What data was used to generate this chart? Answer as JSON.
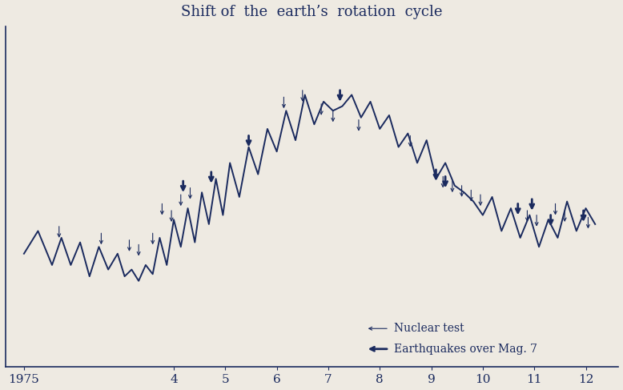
{
  "title": "Shift of  the  earth’s  rotation  cycle",
  "bg_color": "#eeeae2",
  "line_color": "#1a2a5e",
  "nuclear_arrows": [
    [
      1.05,
      3.8,
      false
    ],
    [
      1.95,
      3.5,
      false
    ],
    [
      2.55,
      3.2,
      false
    ],
    [
      2.75,
      3.0,
      false
    ],
    [
      3.05,
      3.5,
      false
    ],
    [
      3.25,
      4.8,
      false
    ],
    [
      3.45,
      4.5,
      false
    ],
    [
      3.65,
      5.2,
      false
    ],
    [
      3.85,
      5.5,
      false
    ],
    [
      5.85,
      9.5,
      false
    ],
    [
      6.25,
      9.8,
      false
    ],
    [
      6.65,
      9.2,
      false
    ],
    [
      6.9,
      8.9,
      false
    ],
    [
      7.45,
      8.5,
      false
    ],
    [
      8.55,
      7.8,
      false
    ],
    [
      9.25,
      6.0,
      false
    ],
    [
      9.45,
      5.8,
      false
    ],
    [
      9.65,
      5.6,
      false
    ],
    [
      9.85,
      5.4,
      false
    ],
    [
      10.05,
      5.2,
      false
    ],
    [
      11.05,
      4.5,
      false
    ],
    [
      11.25,
      4.3,
      false
    ],
    [
      11.65,
      4.8,
      false
    ],
    [
      11.85,
      4.5,
      false
    ],
    [
      12.35,
      4.2,
      false
    ]
  ],
  "earthquake_arrows": [
    [
      3.7,
      5.8,
      true
    ],
    [
      4.3,
      6.2,
      true
    ],
    [
      5.1,
      7.8,
      true
    ],
    [
      7.05,
      9.8,
      true
    ],
    [
      9.1,
      6.3,
      true
    ],
    [
      9.3,
      6.0,
      true
    ],
    [
      10.85,
      4.8,
      true
    ],
    [
      11.15,
      5.0,
      true
    ],
    [
      11.55,
      4.3,
      true
    ],
    [
      12.25,
      4.5,
      true
    ]
  ],
  "line_x": [
    0.3,
    0.6,
    0.9,
    1.1,
    1.3,
    1.5,
    1.7,
    1.9,
    2.1,
    2.3,
    2.45,
    2.6,
    2.75,
    2.9,
    3.05,
    3.2,
    3.35,
    3.5,
    3.65,
    3.8,
    3.95,
    4.1,
    4.25,
    4.4,
    4.55,
    4.7,
    4.9,
    5.1,
    5.3,
    5.5,
    5.7,
    5.9,
    6.1,
    6.3,
    6.5,
    6.7,
    6.9,
    7.1,
    7.3,
    7.5,
    7.7,
    7.9,
    8.1,
    8.3,
    8.5,
    8.7,
    8.9,
    9.1,
    9.3,
    9.5,
    9.7,
    9.9,
    10.1,
    10.3,
    10.5,
    10.7,
    10.9,
    11.1,
    11.3,
    11.5,
    11.7,
    11.9,
    12.1,
    12.3,
    12.5
  ],
  "line_y": [
    2.5,
    3.5,
    2.0,
    3.2,
    2.0,
    3.0,
    1.5,
    2.8,
    1.8,
    2.5,
    1.5,
    1.8,
    1.3,
    2.0,
    1.6,
    3.2,
    2.0,
    4.0,
    2.8,
    4.5,
    3.0,
    5.2,
    3.8,
    5.8,
    4.2,
    6.5,
    5.0,
    7.2,
    6.0,
    8.0,
    7.0,
    8.8,
    7.5,
    9.5,
    8.2,
    9.2,
    8.8,
    9.0,
    9.5,
    8.5,
    9.2,
    8.0,
    8.6,
    7.2,
    7.8,
    6.5,
    7.5,
    5.8,
    6.5,
    5.5,
    5.2,
    4.8,
    4.2,
    5.0,
    3.5,
    4.5,
    3.2,
    4.2,
    2.8,
    4.0,
    3.2,
    4.8,
    3.5,
    4.5,
    3.8
  ]
}
